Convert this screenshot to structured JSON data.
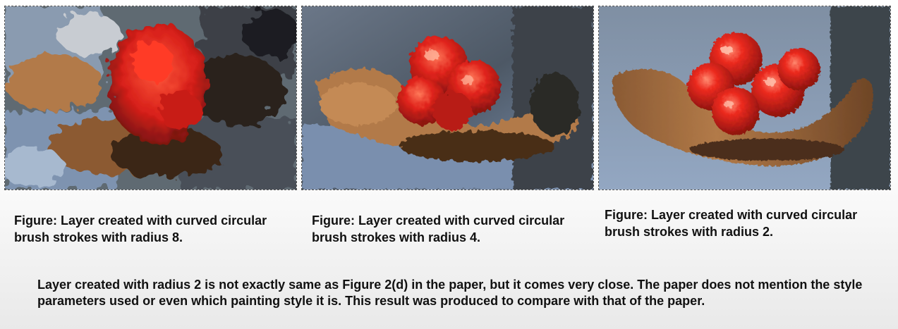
{
  "figures": [
    {
      "caption": "Figure: Layer created with curved circular brush strokes with radius 8.",
      "image": "painting-radius-8"
    },
    {
      "caption": "Figure: Layer created with curved circular brush strokes with radius 4.",
      "image": "painting-radius-4"
    },
    {
      "caption": "Figure: Layer created with curved circular brush strokes with radius 2.",
      "image": "painting-radius-2"
    }
  ],
  "note": "Layer created with radius 2 is not exactly same as Figure 2(d) in the paper, but it comes very close. The paper does not mention the style parameters used or even which painting style it is. This result was produced to compare with that of the paper.",
  "colors": {
    "background": "#ffffff",
    "fruit_red": "#e0231b",
    "hand_tan": "#b27a48",
    "cloth_blue": "#7e94b4",
    "shadow": "#1e1a16"
  }
}
